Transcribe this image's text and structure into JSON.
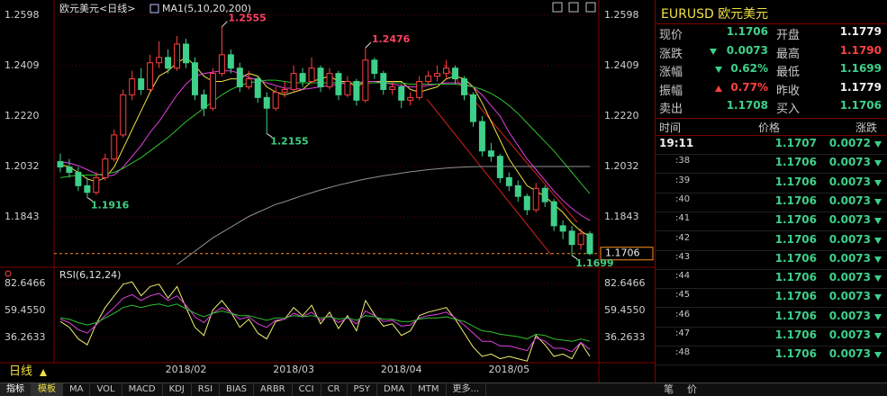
{
  "chart_data": [
    {
      "type": "candlestick",
      "title": "欧元美元<日线>",
      "indicator": "MA1(5,10,20,200)",
      "period": "日线",
      "categories": [
        null,
        null,
        null,
        null,
        null,
        null,
        null,
        null,
        null,
        null,
        null,
        null,
        null,
        null,
        "2018/02",
        null,
        null,
        null,
        null,
        null,
        null,
        null,
        null,
        null,
        null,
        null,
        "2018/03",
        null,
        null,
        null,
        null,
        null,
        null,
        null,
        null,
        null,
        null,
        null,
        "2018/04",
        null,
        null,
        null,
        null,
        null,
        null,
        null,
        null,
        null,
        null,
        null,
        "2018/05",
        null,
        null,
        null,
        null,
        null,
        null,
        null,
        null,
        null
      ],
      "up_color": "#ff4040",
      "down_color": "#3ed08a",
      "candles": [
        [
          1.205,
          1.208,
          1.201,
          1.203
        ],
        [
          1.203,
          1.206,
          1.199,
          1.201
        ],
        [
          1.201,
          1.203,
          1.194,
          1.196
        ],
        [
          1.196,
          1.199,
          1.1916,
          1.1935
        ],
        [
          1.1935,
          1.201,
          1.1925,
          1.199
        ],
        [
          1.199,
          1.208,
          1.198,
          1.206
        ],
        [
          1.206,
          1.217,
          1.205,
          1.215
        ],
        [
          1.215,
          1.232,
          1.214,
          1.23
        ],
        [
          1.23,
          1.239,
          1.228,
          1.236
        ],
        [
          1.236,
          1.24,
          1.23,
          1.232
        ],
        [
          1.232,
          1.245,
          1.231,
          1.242
        ],
        [
          1.242,
          1.25,
          1.24,
          1.244
        ],
        [
          1.244,
          1.247,
          1.238,
          1.24
        ],
        [
          1.24,
          1.252,
          1.239,
          1.249
        ],
        [
          1.249,
          1.251,
          1.24,
          1.242
        ],
        [
          1.242,
          1.244,
          1.228,
          1.23
        ],
        [
          1.23,
          1.232,
          1.222,
          1.225
        ],
        [
          1.225,
          1.24,
          1.224,
          1.238
        ],
        [
          1.238,
          1.2555,
          1.237,
          1.245
        ],
        [
          1.245,
          1.247,
          1.238,
          1.24
        ],
        [
          1.24,
          1.242,
          1.231,
          1.233
        ],
        [
          1.233,
          1.239,
          1.232,
          1.236
        ],
        [
          1.236,
          1.237,
          1.227,
          1.229
        ],
        [
          1.229,
          1.231,
          1.2155,
          1.225
        ],
        [
          1.225,
          1.233,
          1.224,
          1.231
        ],
        [
          1.231,
          1.235,
          1.229,
          1.232
        ],
        [
          1.232,
          1.241,
          1.231,
          1.238
        ],
        [
          1.238,
          1.24,
          1.233,
          1.235
        ],
        [
          1.235,
          1.244,
          1.234,
          1.24
        ],
        [
          1.24,
          1.241,
          1.231,
          1.233
        ],
        [
          1.233,
          1.24,
          1.232,
          1.238
        ],
        [
          1.238,
          1.239,
          1.228,
          1.23
        ],
        [
          1.23,
          1.237,
          1.229,
          1.235
        ],
        [
          1.235,
          1.236,
          1.226,
          1.228
        ],
        [
          1.228,
          1.2476,
          1.227,
          1.243
        ],
        [
          1.243,
          1.244,
          1.236,
          1.238
        ],
        [
          1.238,
          1.239,
          1.23,
          1.232
        ],
        [
          1.232,
          1.235,
          1.23,
          1.233
        ],
        [
          1.233,
          1.234,
          1.225,
          1.228
        ],
        [
          1.228,
          1.231,
          1.226,
          1.229
        ],
        [
          1.229,
          1.237,
          1.228,
          1.235
        ],
        [
          1.235,
          1.239,
          1.234,
          1.237
        ],
        [
          1.237,
          1.241,
          1.235,
          1.238
        ],
        [
          1.238,
          1.243,
          1.236,
          1.24
        ],
        [
          1.24,
          1.241,
          1.234,
          1.236
        ],
        [
          1.236,
          1.237,
          1.228,
          1.23
        ],
        [
          1.23,
          1.231,
          1.218,
          1.22
        ],
        [
          1.22,
          1.222,
          1.207,
          1.209
        ],
        [
          1.209,
          1.212,
          1.205,
          1.207
        ],
        [
          1.207,
          1.208,
          1.197,
          1.199
        ],
        [
          1.199,
          1.201,
          1.194,
          1.196
        ],
        [
          1.196,
          1.198,
          1.19,
          1.192
        ],
        [
          1.192,
          1.193,
          1.185,
          1.187
        ],
        [
          1.187,
          1.197,
          1.186,
          1.195
        ],
        [
          1.195,
          1.196,
          1.188,
          1.19
        ],
        [
          1.19,
          1.191,
          1.179,
          1.181
        ],
        [
          1.181,
          1.183,
          1.176,
          1.179
        ],
        [
          1.179,
          1.181,
          1.1699,
          1.174
        ],
        [
          1.174,
          1.18,
          1.172,
          1.178
        ],
        [
          1.178,
          1.179,
          1.17,
          1.1706
        ]
      ],
      "series": [
        {
          "color": "#f0e040",
          "values": [
            1.204,
            1.203,
            1.201,
            1.1985,
            1.1975,
            1.199,
            1.203,
            1.21,
            1.217,
            1.224,
            1.231,
            1.237,
            1.239,
            1.242,
            1.244,
            1.241,
            1.237,
            1.235,
            1.235,
            1.236,
            1.236,
            1.238,
            1.237,
            1.233,
            1.231,
            1.23,
            1.231,
            1.232,
            1.235,
            1.236,
            1.237,
            1.235,
            1.235,
            1.233,
            1.235,
            1.235,
            1.235,
            1.235,
            1.235,
            1.232,
            1.231,
            1.232,
            1.233,
            1.236,
            1.237,
            1.236,
            1.233,
            1.227,
            1.22,
            1.213,
            1.206,
            1.201,
            1.196,
            1.194,
            1.192,
            1.189,
            1.186,
            1.182,
            1.179,
            1.177
          ]
        },
        {
          "color": "#e040e0",
          "values": [
            1.205,
            1.2045,
            1.2035,
            1.202,
            1.2005,
            1.1995,
            1.2,
            1.203,
            1.207,
            1.211,
            1.216,
            1.22,
            1.225,
            1.23,
            1.234,
            1.237,
            1.238,
            1.2385,
            1.239,
            1.239,
            1.238,
            1.2365,
            1.2355,
            1.2345,
            1.2335,
            1.2325,
            1.2325,
            1.232,
            1.2325,
            1.233,
            1.2335,
            1.234,
            1.2345,
            1.2345,
            1.235,
            1.235,
            1.2345,
            1.234,
            1.2335,
            1.233,
            1.233,
            1.2335,
            1.234,
            1.2345,
            1.2345,
            1.234,
            1.233,
            1.23,
            1.226,
            1.222,
            1.216,
            1.211,
            1.206,
            1.202,
            1.198,
            1.194,
            1.1905,
            1.1875,
            1.185,
            1.183
          ]
        },
        {
          "color": "#30c030",
          "values": [
            1.199,
            1.1995,
            1.2,
            1.2,
            1.2,
            1.2005,
            1.201,
            1.2025,
            1.2045,
            1.2065,
            1.209,
            1.2115,
            1.214,
            1.217,
            1.22,
            1.2225,
            1.225,
            1.2275,
            1.23,
            1.232,
            1.2335,
            1.2345,
            1.235,
            1.2355,
            1.2355,
            1.235,
            1.2345,
            1.2345,
            1.2345,
            1.2345,
            1.2345,
            1.2345,
            1.2345,
            1.2345,
            1.2345,
            1.2345,
            1.2345,
            1.2345,
            1.2345,
            1.234,
            1.234,
            1.234,
            1.234,
            1.234,
            1.234,
            1.2335,
            1.233,
            1.232,
            1.2305,
            1.2285,
            1.226,
            1.223,
            1.2195,
            1.216,
            1.2125,
            1.209,
            1.205,
            1.201,
            1.197,
            1.193
          ]
        },
        {
          "color": "#909090",
          "values": [
            null,
            null,
            null,
            null,
            null,
            null,
            null,
            null,
            null,
            null,
            null,
            null,
            null,
            1.1665,
            1.169,
            1.1715,
            1.174,
            1.1765,
            1.1785,
            1.1805,
            1.1825,
            1.1845,
            1.186,
            1.1875,
            1.189,
            1.19,
            1.1912,
            1.1923,
            1.1934,
            1.1944,
            1.1953,
            1.1962,
            1.197,
            1.1978,
            1.1985,
            1.1991,
            1.1997,
            1.2002,
            1.2007,
            1.2012,
            1.2016,
            1.202,
            1.2023,
            1.2026,
            1.2028,
            1.203,
            1.2031,
            1.2032,
            1.2032,
            1.2032,
            1.2032,
            1.2032,
            1.2032,
            1.2032,
            1.2032,
            1.2032,
            1.2032,
            1.2032,
            1.2032,
            1.2032
          ]
        }
      ],
      "ylim": [
        1.1658,
        1.2628
      ],
      "yticks": [
        1.2598,
        1.2409,
        {
          "value": 1.222,
          "label": "1.2220"
        },
        1.2032,
        1.1843
      ],
      "grid": true,
      "annotations": [
        {
          "candle": 18,
          "price": 1.2555,
          "color": "#ff4060"
        },
        {
          "candle": 34,
          "price": 1.2476,
          "color": "#ff4060"
        },
        {
          "candle": 23,
          "price": 1.2155,
          "color": "#40d080"
        },
        {
          "candle": 3,
          "price": 1.1916,
          "color": "#40d080"
        },
        {
          "candle": 57,
          "price": 1.1699,
          "color": "#40d080"
        }
      ],
      "last_price": 1.1706,
      "last_price_color": "#ff9020"
    },
    {
      "type": "line",
      "title": "RSI(6,12,24)",
      "series": [
        {
          "color": "#f0f070",
          "values": [
            50,
            45,
            35,
            30,
            48,
            62,
            72,
            82,
            84,
            72,
            80,
            82,
            70,
            80,
            62,
            45,
            38,
            60,
            68,
            58,
            45,
            52,
            40,
            35,
            50,
            52,
            62,
            55,
            64,
            48,
            58,
            44,
            55,
            42,
            68,
            56,
            46,
            48,
            38,
            42,
            55,
            58,
            60,
            62,
            52,
            40,
            28,
            20,
            22,
            18,
            20,
            18,
            16,
            38,
            30,
            20,
            22,
            18,
            32,
            20
          ]
        },
        {
          "color": "#e040e0",
          "values": [
            52,
            49,
            43,
            40,
            47,
            55,
            62,
            70,
            73,
            68,
            72,
            74,
            68,
            72,
            64,
            54,
            49,
            57,
            62,
            58,
            52,
            54,
            48,
            45,
            51,
            52,
            57,
            54,
            58,
            51,
            55,
            49,
            53,
            48,
            59,
            55,
            50,
            51,
            46,
            47,
            53,
            55,
            56,
            58,
            53,
            47,
            40,
            33,
            33,
            29,
            29,
            27,
            25,
            36,
            33,
            27,
            27,
            24,
            32,
            26
          ]
        },
        {
          "color": "#30c030",
          "values": [
            53,
            52,
            49,
            47,
            49,
            53,
            57,
            62,
            64,
            62,
            64,
            65,
            63,
            65,
            61,
            57,
            54,
            57,
            59,
            57,
            55,
            55,
            53,
            51,
            53,
            53,
            55,
            54,
            55,
            53,
            54,
            52,
            53,
            51,
            55,
            54,
            52,
            52,
            50,
            50,
            52,
            53,
            53,
            54,
            52,
            50,
            46,
            42,
            41,
            39,
            38,
            37,
            35,
            39,
            38,
            35,
            34,
            33,
            35,
            33
          ]
        }
      ],
      "ylim": [
        9.2,
        94.2
      ],
      "yticks": [
        82.6466,
        {
          "value": 59.455,
          "label": "59.4550"
        },
        36.2633
      ],
      "grid": true
    }
  ],
  "quote": {
    "symbol": "EURUSD",
    "name": "欧元美元",
    "rows": [
      [
        "现价",
        "1.1706",
        "开盘",
        "1.1779"
      ],
      [
        "涨跌",
        "0.0073",
        "最高",
        "1.1790"
      ],
      [
        "涨幅",
        "0.62%",
        "最低",
        "1.1699"
      ],
      [
        "振幅",
        "0.77%",
        "昨收",
        "1.1779"
      ],
      [
        "卖出",
        "1.1708",
        "买入",
        "1.1706"
      ]
    ],
    "ticks_header": [
      "时间",
      "价格",
      "涨跌"
    ],
    "ticks": [
      [
        "19:11",
        "1.1707",
        "0.0072"
      ],
      [
        ":38",
        "1.1706",
        "0.0073"
      ],
      [
        ":39",
        "1.1706",
        "0.0073"
      ],
      [
        ":40",
        "1.1706",
        "0.0073"
      ],
      [
        ":41",
        "1.1706",
        "0.0073"
      ],
      [
        ":42",
        "1.1706",
        "0.0073"
      ],
      [
        ":43",
        "1.1706",
        "0.0073"
      ],
      [
        ":44",
        "1.1706",
        "0.0073"
      ],
      [
        ":45",
        "1.1706",
        "0.0073"
      ],
      [
        ":46",
        "1.1706",
        "0.0073"
      ],
      [
        ":47",
        "1.1706",
        "0.0073"
      ],
      [
        ":48",
        "1.1706",
        "0.0073"
      ]
    ]
  },
  "toolbar": [
    "指标",
    "模板",
    "MA",
    "VOL",
    "MACD",
    "KDJ",
    "RSI",
    "BIAS",
    "ARBR",
    "CCI",
    "CR",
    "PSY",
    "DMA",
    "MTM",
    "更多..."
  ],
  "side_tabs": [
    "笔",
    "价"
  ]
}
